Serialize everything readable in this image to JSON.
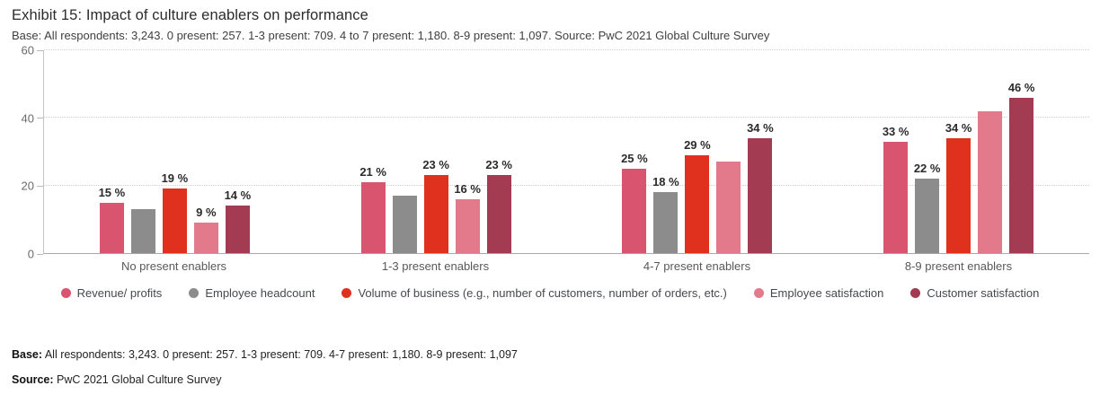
{
  "header": {
    "title": "Exhibit 15: Impact of culture enablers on performance",
    "subtitle": "Base: All respondents: 3,243. 0 present: 257. 1-3 present: 709. 4 to 7 present: 1,180. 8-9 present: 1,097. Source: PwC 2021 Global Culture Survey"
  },
  "chart_data": {
    "type": "bar",
    "title": "Exhibit 15: Impact of culture enablers on performance",
    "categories": [
      "No present enablers",
      "1-3 present enablers",
      "4-7 present enablers",
      "8-9 present enablers"
    ],
    "series": [
      {
        "name": "Revenue/ profits",
        "color": "#d9546e",
        "values": [
          15,
          21,
          25,
          33
        ],
        "labels": [
          "15 %",
          "21 %",
          "25 %",
          "33 %"
        ]
      },
      {
        "name": "Employee headcount",
        "color": "#8c8c8c",
        "values": [
          13,
          17,
          18,
          22
        ],
        "labels": [
          null,
          null,
          "18 %",
          "22 %"
        ]
      },
      {
        "name": "Volume of business (e.g., number of customers, number of orders, etc.)",
        "color": "#e0301e",
        "values": [
          19,
          23,
          29,
          34
        ],
        "labels": [
          "19 %",
          "23 %",
          "29 %",
          "34 %"
        ]
      },
      {
        "name": "Employee satisfaction",
        "color": "#e27a8b",
        "values": [
          9,
          16,
          27,
          42
        ],
        "labels": [
          "9 %",
          "16 %",
          null,
          null
        ]
      },
      {
        "name": "Customer satisfaction",
        "color": "#a33b52",
        "values": [
          14,
          23,
          34,
          46
        ],
        "labels": [
          "14 %",
          "23 %",
          "34 %",
          "46 %"
        ]
      }
    ],
    "ylim": [
      0,
      60
    ],
    "yticks": [
      0,
      20,
      40,
      60
    ],
    "grid": "horizontal-dotted",
    "legend_position": "bottom",
    "value_suffix": " %"
  },
  "footer": {
    "base_label": "Base:",
    "base_text": " All respondents: 3,243. 0 present: 257. 1-3 present: 709. 4-7 present: 1,180. 8-9 present: 1,097",
    "source_label": "Source:",
    "source_text": " PwC 2021 Global Culture Survey"
  }
}
